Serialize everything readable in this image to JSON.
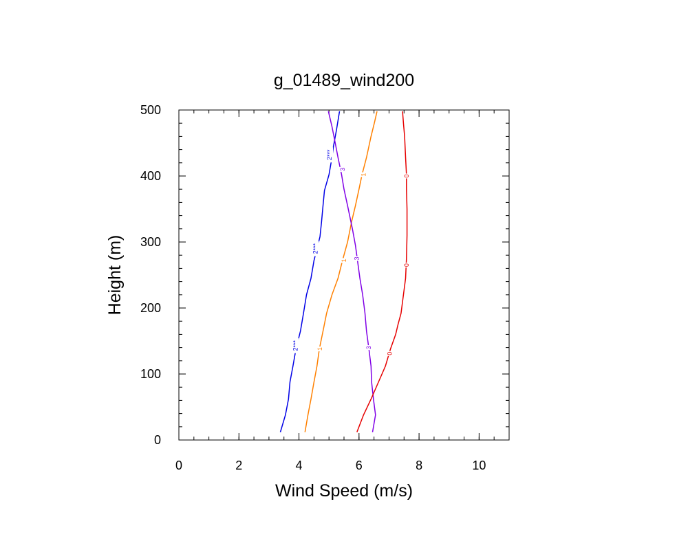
{
  "chart_data": {
    "type": "line",
    "title": "g_01489_wind200",
    "xlabel": "Wind Speed (m/s)",
    "ylabel": "Height (m)",
    "xlim": [
      0,
      11
    ],
    "ylim": [
      0,
      500
    ],
    "xticks": [
      0,
      2,
      4,
      6,
      8,
      10
    ],
    "yticks": [
      0,
      100,
      200,
      300,
      400,
      500
    ],
    "x_minor_step": 0.5,
    "y_minor_step": 20,
    "grid": false,
    "series": [
      {
        "label": "2***",
        "color": "#0000e6",
        "points": [
          [
            3.38,
            12
          ],
          [
            3.55,
            38
          ],
          [
            3.65,
            62
          ],
          [
            3.7,
            88
          ],
          [
            3.8,
            112
          ],
          [
            3.9,
            138
          ],
          [
            4.05,
            165
          ],
          [
            4.15,
            192
          ],
          [
            4.25,
            220
          ],
          [
            4.4,
            245
          ],
          [
            4.5,
            272
          ],
          [
            4.6,
            290
          ],
          [
            4.7,
            308
          ],
          [
            4.75,
            330
          ],
          [
            4.8,
            355
          ],
          [
            4.85,
            378
          ],
          [
            5.0,
            402
          ],
          [
            5.1,
            428
          ],
          [
            5.15,
            445
          ],
          [
            5.25,
            470
          ],
          [
            5.35,
            498
          ]
        ],
        "label_at": [
          [
            3.88,
            143
          ],
          [
            4.55,
            290
          ],
          [
            5.02,
            432
          ]
        ]
      },
      {
        "label": "1",
        "color": "#ff8000",
        "points": [
          [
            4.2,
            12
          ],
          [
            4.3,
            38
          ],
          [
            4.4,
            62
          ],
          [
            4.5,
            88
          ],
          [
            4.6,
            112
          ],
          [
            4.68,
            138
          ],
          [
            4.8,
            165
          ],
          [
            4.92,
            192
          ],
          [
            5.1,
            220
          ],
          [
            5.3,
            245
          ],
          [
            5.45,
            272
          ],
          [
            5.62,
            300
          ],
          [
            5.75,
            330
          ],
          [
            5.88,
            355
          ],
          [
            6.0,
            380
          ],
          [
            6.1,
            402
          ],
          [
            6.25,
            428
          ],
          [
            6.4,
            460
          ],
          [
            6.52,
            482
          ],
          [
            6.6,
            498
          ]
        ],
        "label_at": [
          [
            4.7,
            138
          ],
          [
            5.5,
            272
          ],
          [
            6.15,
            402
          ]
        ]
      },
      {
        "label": "3",
        "color": "#8000e6",
        "points": [
          [
            6.45,
            12
          ],
          [
            6.55,
            38
          ],
          [
            6.48,
            62
          ],
          [
            6.42,
            88
          ],
          [
            6.4,
            112
          ],
          [
            6.33,
            138
          ],
          [
            6.25,
            165
          ],
          [
            6.2,
            192
          ],
          [
            6.12,
            220
          ],
          [
            6.03,
            245
          ],
          [
            5.95,
            272
          ],
          [
            5.88,
            295
          ],
          [
            5.78,
            320
          ],
          [
            5.62,
            355
          ],
          [
            5.5,
            380
          ],
          [
            5.42,
            402
          ],
          [
            5.3,
            428
          ],
          [
            5.2,
            452
          ],
          [
            5.1,
            475
          ],
          [
            4.98,
            498
          ]
        ],
        "label_at": [
          [
            6.33,
            140
          ],
          [
            5.92,
            275
          ],
          [
            5.45,
            410
          ]
        ]
      },
      {
        "label": "0",
        "color": "#e60000",
        "points": [
          [
            5.93,
            12
          ],
          [
            6.15,
            38
          ],
          [
            6.4,
            62
          ],
          [
            6.65,
            88
          ],
          [
            6.88,
            112
          ],
          [
            7.05,
            138
          ],
          [
            7.22,
            160
          ],
          [
            7.3,
            175
          ],
          [
            7.4,
            192
          ],
          [
            7.48,
            220
          ],
          [
            7.55,
            245
          ],
          [
            7.58,
            275
          ],
          [
            7.6,
            310
          ],
          [
            7.6,
            350
          ],
          [
            7.58,
            380
          ],
          [
            7.58,
            402
          ],
          [
            7.55,
            428
          ],
          [
            7.52,
            460
          ],
          [
            7.48,
            480
          ],
          [
            7.45,
            498
          ]
        ],
        "label_at": [
          [
            7.02,
            131
          ],
          [
            7.58,
            265
          ],
          [
            7.58,
            400
          ]
        ]
      }
    ]
  }
}
